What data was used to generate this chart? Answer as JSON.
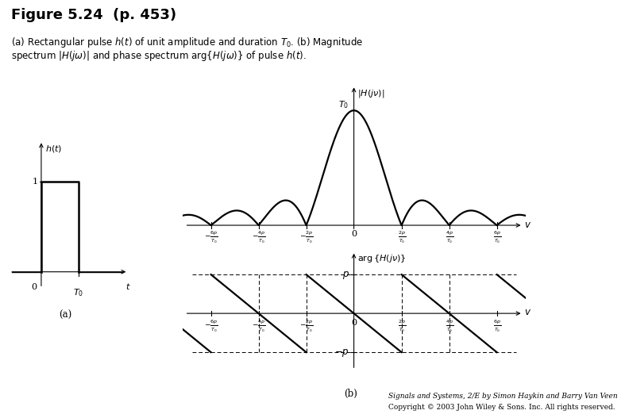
{
  "title": "Figure 5.24  (p. 453)",
  "subtitle_line1": "(a) Rectangular pulse $h(t)$ of unit amplitude and duration $T_0$. (b) Magnitude",
  "subtitle_line2": "spectrum $|H(j\\omega)|$ and phase spectrum arg{$H(j\\omega)$} of pulse $h(t)$.",
  "background_color": "#ffffff",
  "text_color": "#000000",
  "footer_line1": "Signals and Systems, 2/E by Simon Haykin and Barry Van Veen",
  "footer_line2": "Copyright © 2003 John Wiley & Sons. Inc. All rights reserved."
}
